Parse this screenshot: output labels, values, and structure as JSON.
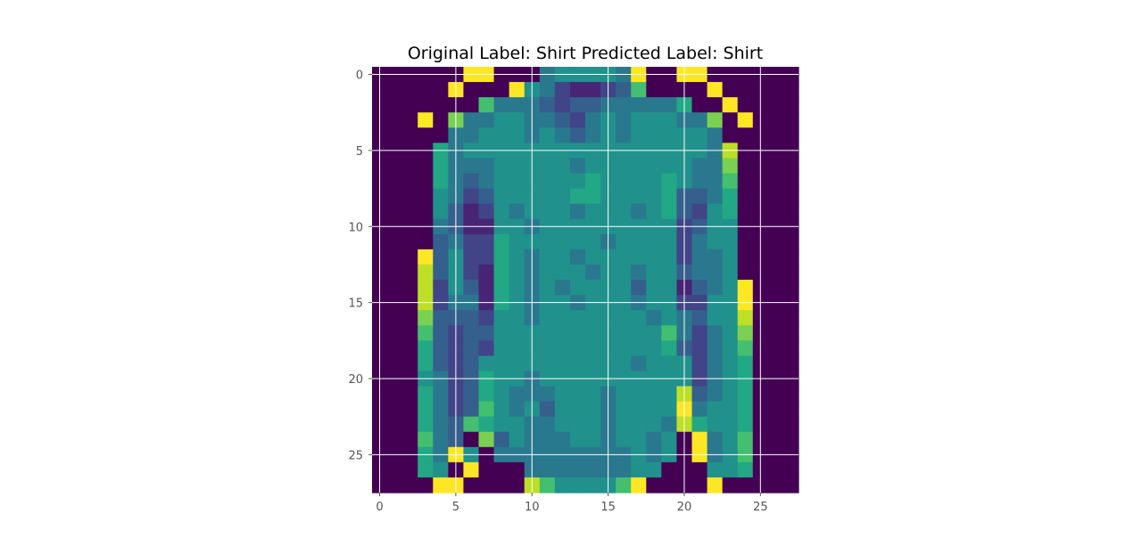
{
  "chart_data": {
    "type": "heatmap",
    "title": "Original Label: Shirt  Predicted Label: Shirt",
    "xlabel": "",
    "ylabel": "",
    "colormap": "viridis",
    "grid": true,
    "x_ticks": [
      0,
      5,
      10,
      15,
      20,
      25
    ],
    "y_ticks": [
      0,
      5,
      10,
      15,
      20,
      25
    ],
    "x_tick_labels": [
      "0",
      "5",
      "10",
      "15",
      "20",
      "25"
    ],
    "y_tick_labels": [
      "0",
      "5",
      "10",
      "15",
      "20",
      "25"
    ],
    "xlim": [
      -0.5,
      27.5
    ],
    "ylim": [
      27.5,
      -0.5
    ],
    "value_range": [
      0,
      1
    ],
    "rows": 28,
    "cols": 28,
    "values": [
      [
        0,
        0,
        0,
        0,
        0,
        0,
        1,
        1,
        0,
        0,
        0,
        0.4,
        0.5,
        0.5,
        0.5,
        0.5,
        0.4,
        1,
        0,
        0,
        1,
        1,
        0,
        0,
        0,
        0,
        0,
        0
      ],
      [
        0,
        0,
        0,
        0,
        0,
        1,
        0,
        0,
        0,
        1,
        0.5,
        0.4,
        0.2,
        0.1,
        0.1,
        0.2,
        0.3,
        0.7,
        0,
        0,
        0,
        0,
        1,
        0,
        0,
        0,
        0,
        0
      ],
      [
        0,
        0,
        0,
        0,
        0,
        0,
        0,
        0.7,
        0.4,
        0.4,
        0.4,
        0.3,
        0.2,
        0.3,
        0.3,
        0.4,
        0.4,
        0.4,
        0.4,
        0.4,
        0.6,
        0,
        0,
        1,
        0,
        0,
        0,
        0
      ],
      [
        0,
        0,
        0,
        1,
        0,
        0.8,
        0.4,
        0.4,
        0.5,
        0.5,
        0.4,
        0.4,
        0.3,
        0.2,
        0.4,
        0.5,
        0.4,
        0.5,
        0.5,
        0.5,
        0.4,
        0.4,
        0.8,
        0,
        1,
        0,
        0,
        0
      ],
      [
        0,
        0,
        0,
        0,
        0,
        0.4,
        0.4,
        0.5,
        0.5,
        0.5,
        0.4,
        0.5,
        0.4,
        0.3,
        0.4,
        0.5,
        0.4,
        0.5,
        0.5,
        0.5,
        0.5,
        0.5,
        0.4,
        0,
        0,
        0,
        0,
        0
      ],
      [
        0,
        0,
        0,
        0,
        0.6,
        0.4,
        0.5,
        0.5,
        0.5,
        0.5,
        0.5,
        0.5,
        0.5,
        0.5,
        0.5,
        0.5,
        0.5,
        0.5,
        0.5,
        0.5,
        0.5,
        0.5,
        0.4,
        0.9,
        0,
        0,
        0,
        0
      ],
      [
        0,
        0,
        0,
        0,
        0.6,
        0.4,
        0.4,
        0.4,
        0.5,
        0.5,
        0.5,
        0.5,
        0.5,
        0.4,
        0.5,
        0.5,
        0.5,
        0.5,
        0.5,
        0.5,
        0.5,
        0.4,
        0.4,
        0.8,
        0,
        0,
        0,
        0
      ],
      [
        0,
        0,
        0,
        0,
        0.6,
        0.4,
        0.3,
        0.4,
        0.5,
        0.5,
        0.5,
        0.5,
        0.5,
        0.5,
        0.6,
        0.5,
        0.5,
        0.5,
        0.5,
        0.6,
        0.5,
        0.4,
        0.4,
        0.7,
        0,
        0,
        0,
        0
      ],
      [
        0,
        0,
        0,
        0,
        0.5,
        0.4,
        0.2,
        0.3,
        0.5,
        0.5,
        0.5,
        0.5,
        0.5,
        0.6,
        0.6,
        0.5,
        0.5,
        0.5,
        0.5,
        0.6,
        0.3,
        0.3,
        0.4,
        0.6,
        0,
        0,
        0,
        0
      ],
      [
        0,
        0,
        0,
        0,
        0.5,
        0.3,
        0.1,
        0.2,
        0.5,
        0.4,
        0.5,
        0.5,
        0.5,
        0.4,
        0.5,
        0.5,
        0.5,
        0.4,
        0.5,
        0.6,
        0.3,
        0.2,
        0.5,
        0.6,
        0,
        0,
        0,
        0
      ],
      [
        0,
        0,
        0,
        0,
        0.4,
        0.3,
        0.1,
        0.1,
        0.5,
        0.5,
        0.4,
        0.5,
        0.5,
        0.5,
        0.5,
        0.5,
        0.5,
        0.5,
        0.5,
        0.5,
        0.2,
        0.3,
        0.5,
        0.5,
        0,
        0,
        0,
        0
      ],
      [
        0,
        0,
        0,
        0,
        0.3,
        0.4,
        0.2,
        0.2,
        0.6,
        0.5,
        0.5,
        0.5,
        0.5,
        0.5,
        0.5,
        0.4,
        0.5,
        0.5,
        0.5,
        0.5,
        0.2,
        0.4,
        0.5,
        0.5,
        0,
        0,
        0,
        0
      ],
      [
        0,
        0,
        0,
        1,
        0.3,
        0.5,
        0.2,
        0.2,
        0.6,
        0.5,
        0.4,
        0.5,
        0.5,
        0.4,
        0.5,
        0.5,
        0.5,
        0.5,
        0.5,
        0.5,
        0.2,
        0.4,
        0.4,
        0.5,
        0,
        0,
        0,
        0
      ],
      [
        0,
        0,
        0,
        0.9,
        0.3,
        0.5,
        0.2,
        0.1,
        0.6,
        0.5,
        0.4,
        0.5,
        0.5,
        0.5,
        0.4,
        0.5,
        0.5,
        0.4,
        0.5,
        0.5,
        0.3,
        0.4,
        0.4,
        0.5,
        0,
        0,
        0,
        0
      ],
      [
        0,
        0,
        0,
        0.9,
        0.2,
        0.5,
        0.3,
        0.1,
        0.6,
        0.5,
        0.4,
        0.5,
        0.4,
        0.5,
        0.5,
        0.5,
        0.5,
        0.3,
        0.5,
        0.5,
        0.1,
        0.3,
        0.4,
        0.5,
        1,
        0,
        0,
        0
      ],
      [
        0,
        0,
        0,
        0.9,
        0.2,
        0.4,
        0.4,
        0.1,
        0.6,
        0.5,
        0.4,
        0.5,
        0.5,
        0.4,
        0.5,
        0.5,
        0.5,
        0.4,
        0.5,
        0.5,
        0.2,
        0.2,
        0.5,
        0.5,
        1,
        0,
        0,
        0
      ],
      [
        0,
        0,
        0,
        0.8,
        0.3,
        0.3,
        0.3,
        0.2,
        0.5,
        0.5,
        0.4,
        0.5,
        0.5,
        0.5,
        0.5,
        0.5,
        0.5,
        0.5,
        0.4,
        0.5,
        0.4,
        0.3,
        0.5,
        0.5,
        0.9,
        0,
        0,
        0
      ],
      [
        0,
        0,
        0,
        0.7,
        0.3,
        0.2,
        0.3,
        0.3,
        0.5,
        0.5,
        0.5,
        0.5,
        0.5,
        0.5,
        0.5,
        0.5,
        0.5,
        0.5,
        0.5,
        0.7,
        0.4,
        0.2,
        0.4,
        0.5,
        0.8,
        0,
        0,
        0
      ],
      [
        0,
        0,
        0,
        0.6,
        0.3,
        0.2,
        0.3,
        0.2,
        0.5,
        0.5,
        0.5,
        0.5,
        0.5,
        0.5,
        0.5,
        0.5,
        0.5,
        0.5,
        0.5,
        0.6,
        0.3,
        0.2,
        0.4,
        0.5,
        0.7,
        0,
        0,
        0
      ],
      [
        0,
        0,
        0,
        0.6,
        0.3,
        0.2,
        0.3,
        0.5,
        0.5,
        0.5,
        0.5,
        0.5,
        0.5,
        0.5,
        0.5,
        0.5,
        0.5,
        0.4,
        0.5,
        0.5,
        0.5,
        0.2,
        0.4,
        0.5,
        0.6,
        0,
        0,
        0
      ],
      [
        0,
        0,
        0,
        0.5,
        0.4,
        0.2,
        0.3,
        0.6,
        0.5,
        0.5,
        0.4,
        0.5,
        0.5,
        0.5,
        0.5,
        0.5,
        0.5,
        0.5,
        0.5,
        0.5,
        0.5,
        0.2,
        0.4,
        0.5,
        0.6,
        0,
        0,
        0
      ],
      [
        0,
        0,
        0,
        0.6,
        0.4,
        0.2,
        0.3,
        0.6,
        0.5,
        0.4,
        0.4,
        0.4,
        0.5,
        0.5,
        0.5,
        0.4,
        0.5,
        0.5,
        0.5,
        0.5,
        0.9,
        0.3,
        0.4,
        0.5,
        0.6,
        0,
        0,
        0
      ],
      [
        0,
        0,
        0,
        0.6,
        0.4,
        0.2,
        0.3,
        0.7,
        0.5,
        0.4,
        0.5,
        0.3,
        0.5,
        0.5,
        0.5,
        0.4,
        0.5,
        0.5,
        0.5,
        0.5,
        1,
        0.4,
        0.5,
        0.5,
        0.6,
        0,
        0,
        0
      ],
      [
        0,
        0,
        0,
        0.6,
        0.4,
        0.3,
        0.7,
        0.6,
        0.5,
        0.5,
        0.4,
        0.4,
        0.5,
        0.5,
        0.5,
        0.4,
        0.5,
        0.5,
        0.5,
        0.4,
        0.9,
        0.6,
        0.5,
        0.5,
        0.6,
        0,
        0,
        0
      ],
      [
        0,
        0,
        0,
        0.7,
        0.4,
        0.3,
        0,
        0.8,
        0.3,
        0.5,
        0.4,
        0.4,
        0.4,
        0.5,
        0.5,
        0.4,
        0.5,
        0.5,
        0.4,
        0.5,
        0,
        1,
        0.4,
        0.5,
        0.7,
        0,
        0,
        0
      ],
      [
        0,
        0,
        0,
        0.6,
        0.4,
        1,
        0.5,
        0,
        0.4,
        0.4,
        0.4,
        0.4,
        0.4,
        0.4,
        0.4,
        0.4,
        0.4,
        0.5,
        0.4,
        0.5,
        0,
        1,
        0.4,
        0.5,
        0.7,
        0,
        0,
        0
      ],
      [
        0,
        0,
        0,
        0.6,
        0.5,
        0,
        1,
        0,
        0,
        0,
        0.4,
        0.4,
        0.4,
        0.4,
        0.4,
        0.4,
        0.4,
        0.5,
        0.5,
        0,
        0,
        0,
        0.5,
        0.5,
        0.6,
        0,
        0,
        0
      ],
      [
        0,
        0,
        0,
        0,
        1,
        1,
        0,
        0,
        0,
        0,
        0.9,
        0.7,
        0.5,
        0.5,
        0.5,
        0.5,
        0.7,
        1,
        0,
        0,
        0,
        0,
        1,
        0,
        0,
        0,
        0,
        0
      ]
    ]
  }
}
